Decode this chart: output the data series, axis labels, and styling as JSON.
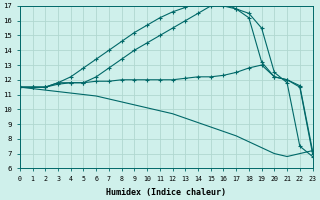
{
  "xlabel": "Humidex (Indice chaleur)",
  "bg_color": "#cff0eb",
  "grid_color": "#b0d8d0",
  "line_color": "#006868",
  "xlim": [
    0,
    23
  ],
  "ylim": [
    6,
    17
  ],
  "xticks": [
    0,
    1,
    2,
    3,
    4,
    5,
    6,
    7,
    8,
    9,
    10,
    11,
    12,
    13,
    14,
    15,
    16,
    17,
    18,
    19,
    20,
    21,
    22,
    23
  ],
  "yticks": [
    6,
    7,
    8,
    9,
    10,
    11,
    12,
    13,
    14,
    15,
    16,
    17
  ],
  "curve_upper_x": [
    0,
    1,
    2,
    3,
    4,
    5,
    6,
    7,
    8,
    9,
    10,
    11,
    12,
    13,
    14,
    15,
    16,
    17,
    18,
    19,
    20,
    21,
    22,
    23
  ],
  "curve_upper_y": [
    11.5,
    11.5,
    11.5,
    11.8,
    12.2,
    12.8,
    13.4,
    14.0,
    14.6,
    15.2,
    15.7,
    16.2,
    16.6,
    16.9,
    17.2,
    17.2,
    17.0,
    16.8,
    16.5,
    15.5,
    12.5,
    11.8,
    7.5,
    6.8
  ],
  "curve_upper2_x": [
    0,
    1,
    2,
    3,
    4,
    5,
    6,
    7,
    8,
    9,
    10,
    11,
    12,
    13,
    14,
    15,
    16,
    17,
    18,
    19,
    20,
    21,
    22,
    23
  ],
  "curve_upper2_y": [
    11.5,
    11.5,
    11.5,
    11.8,
    11.8,
    11.8,
    12.2,
    12.8,
    13.4,
    14.0,
    14.5,
    15.0,
    15.5,
    16.0,
    16.5,
    17.0,
    17.2,
    16.8,
    16.2,
    13.2,
    12.2,
    12.0,
    11.6,
    7.2
  ],
  "curve_flat_x": [
    0,
    1,
    2,
    3,
    4,
    5,
    6,
    7,
    8,
    9,
    10,
    11,
    12,
    13,
    14,
    15,
    16,
    17,
    18,
    19,
    20,
    21,
    22,
    23
  ],
  "curve_flat_y": [
    11.5,
    11.5,
    11.5,
    11.7,
    11.8,
    11.8,
    11.9,
    11.9,
    12.0,
    12.0,
    12.0,
    12.0,
    12.0,
    12.1,
    12.2,
    12.2,
    12.3,
    12.5,
    12.8,
    13.0,
    12.2,
    12.0,
    11.5,
    7.0
  ],
  "curve_diag_x": [
    0,
    1,
    2,
    3,
    4,
    5,
    6,
    7,
    8,
    9,
    10,
    11,
    12,
    13,
    14,
    15,
    16,
    17,
    18,
    19,
    20,
    21,
    22,
    23
  ],
  "curve_diag_y": [
    11.5,
    11.4,
    11.3,
    11.2,
    11.1,
    11.0,
    10.9,
    10.7,
    10.5,
    10.3,
    10.1,
    9.9,
    9.7,
    9.4,
    9.1,
    8.8,
    8.5,
    8.2,
    7.8,
    7.4,
    7.0,
    6.8,
    7.0,
    7.2
  ]
}
